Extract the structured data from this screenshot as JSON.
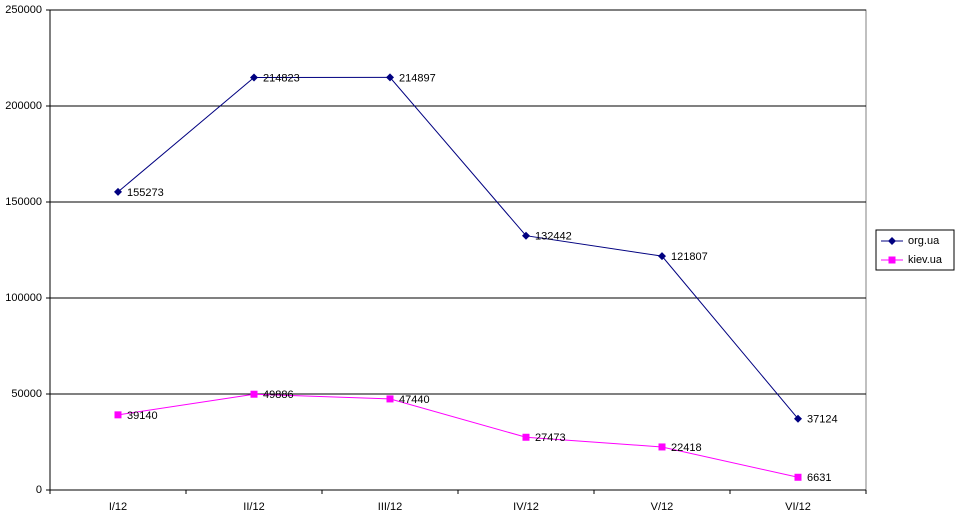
{
  "chart_data": {
    "type": "line",
    "categories": [
      "I/12",
      "II/12",
      "III/12",
      "IV/12",
      "V/12",
      "VI/12"
    ],
    "series": [
      {
        "name": "org.ua",
        "color": "#000080",
        "marker": "diamond",
        "values": [
          155273,
          214823,
          214897,
          132442,
          121807,
          37124
        ]
      },
      {
        "name": "kiev.ua",
        "color": "#ff00ff",
        "marker": "square",
        "values": [
          39140,
          49886,
          47440,
          27473,
          22418,
          6631
        ]
      }
    ],
    "ylim": [
      0,
      250000
    ],
    "yticks": [
      0,
      50000,
      100000,
      150000,
      200000,
      250000
    ],
    "grid": true,
    "legend": "right",
    "data_labels": true
  }
}
